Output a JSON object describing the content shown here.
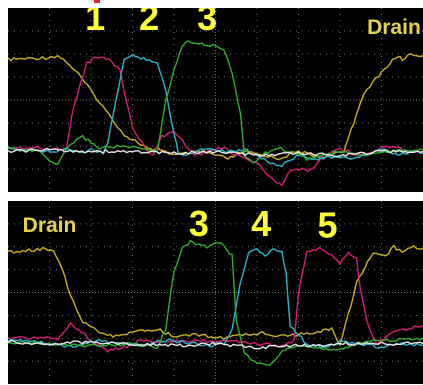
{
  "colors": {
    "background": "#000000",
    "grid": "#6f6f6f",
    "label": "#ffff33",
    "drain_label": "#e6d24a",
    "trace_yellow": "#c8b21c",
    "trace_magenta": "#d81b78",
    "trace_cyan": "#2ab4cc",
    "trace_green": "#2fae2f",
    "trace_white": "#e6e6e6"
  },
  "chart_data": [
    {
      "type": "line",
      "grid": true,
      "xlim": [
        0,
        100
      ],
      "ylim": [
        0,
        1
      ],
      "annotations": [
        {
          "text": "1",
          "x": 21,
          "y": 0.88,
          "kind": "number"
        },
        {
          "text": "2",
          "x": 34,
          "y": 0.88,
          "kind": "number"
        },
        {
          "text": "3",
          "x": 48,
          "y": 0.88,
          "kind": "number"
        },
        {
          "text": "Drain",
          "x": 93,
          "y": 0.86,
          "kind": "drain"
        }
      ],
      "series": [
        {
          "color": "#c8b21c",
          "x": [
            0,
            9,
            12,
            14,
            17,
            25,
            28,
            32,
            35,
            36,
            40,
            47,
            50,
            53,
            57,
            61,
            62,
            65,
            70,
            75,
            78,
            81,
            82,
            84,
            85,
            88,
            90,
            92,
            94,
            95,
            97,
            100
          ],
          "y": [
            0.72,
            0.73,
            0.74,
            0.71,
            0.64,
            0.4,
            0.31,
            0.26,
            0.22,
            0.24,
            0.2,
            0.22,
            0.2,
            0.18,
            0.22,
            0.2,
            0.2,
            0.18,
            0.22,
            0.19,
            0.2,
            0.22,
            0.3,
            0.42,
            0.5,
            0.6,
            0.65,
            0.7,
            0.74,
            0.72,
            0.75,
            0.74
          ]
        },
        {
          "color": "#d81b78",
          "x": [
            0,
            7,
            10,
            14,
            16,
            19,
            21,
            23,
            25,
            27,
            28,
            30,
            33,
            35,
            37,
            40,
            42,
            45,
            48,
            52,
            55,
            60,
            63,
            66,
            68,
            73,
            76,
            80,
            84,
            88,
            92,
            96,
            100
          ],
          "y": [
            0.24,
            0.24,
            0.23,
            0.24,
            0.48,
            0.7,
            0.73,
            0.73,
            0.71,
            0.66,
            0.55,
            0.35,
            0.24,
            0.2,
            0.3,
            0.33,
            0.28,
            0.2,
            0.22,
            0.24,
            0.2,
            0.16,
            0.08,
            0.04,
            0.12,
            0.12,
            0.2,
            0.24,
            0.2,
            0.22,
            0.25,
            0.22,
            0.22
          ]
        },
        {
          "color": "#2ab4cc",
          "x": [
            0,
            5,
            11,
            14,
            17,
            20,
            23,
            24,
            26,
            28,
            30,
            32,
            34,
            36,
            38,
            40,
            41,
            43,
            45,
            48,
            53,
            57,
            61,
            64,
            66,
            68,
            71,
            74,
            78,
            82,
            86,
            90,
            94,
            98,
            100
          ],
          "y": [
            0.23,
            0.23,
            0.22,
            0.24,
            0.21,
            0.23,
            0.21,
            0.26,
            0.5,
            0.72,
            0.74,
            0.73,
            0.72,
            0.7,
            0.55,
            0.32,
            0.22,
            0.2,
            0.22,
            0.24,
            0.22,
            0.23,
            0.19,
            0.15,
            0.14,
            0.18,
            0.2,
            0.18,
            0.19,
            0.18,
            0.2,
            0.23,
            0.2,
            0.22,
            0.21
          ]
        },
        {
          "color": "#2fae2f",
          "x": [
            0,
            8,
            10,
            12,
            15,
            18,
            22,
            27,
            33,
            36,
            38,
            40,
            42,
            44,
            46,
            48,
            50,
            52,
            54,
            56,
            57,
            59,
            62,
            65,
            68,
            72,
            76,
            80,
            85,
            90,
            95,
            100
          ],
          "y": [
            0.24,
            0.22,
            0.16,
            0.15,
            0.26,
            0.3,
            0.24,
            0.25,
            0.23,
            0.22,
            0.5,
            0.66,
            0.8,
            0.82,
            0.81,
            0.8,
            0.79,
            0.78,
            0.65,
            0.42,
            0.2,
            0.16,
            0.21,
            0.24,
            0.22,
            0.18,
            0.2,
            0.22,
            0.2,
            0.22,
            0.23,
            0.23
          ]
        },
        {
          "color": "#e6e6e6",
          "x": [
            0,
            10,
            20,
            30,
            40,
            50,
            60,
            70,
            80,
            90,
            100
          ],
          "y": [
            0.22,
            0.23,
            0.22,
            0.22,
            0.21,
            0.22,
            0.2,
            0.21,
            0.2,
            0.22,
            0.22
          ]
        }
      ]
    },
    {
      "type": "line",
      "grid": true,
      "xlim": [
        0,
        100
      ],
      "ylim": [
        0,
        1
      ],
      "annotations": [
        {
          "text": "Drain",
          "x": 10,
          "y": 0.83,
          "kind": "drain"
        },
        {
          "text": "3",
          "x": 46,
          "y": 0.81,
          "kind": "number"
        },
        {
          "text": "4",
          "x": 61,
          "y": 0.81,
          "kind": "number"
        },
        {
          "text": "5",
          "x": 77,
          "y": 0.8,
          "kind": "number"
        }
      ],
      "series": [
        {
          "color": "#c8b21c",
          "x": [
            0,
            5,
            9,
            11,
            13,
            15,
            18,
            22,
            26,
            30,
            36,
            40,
            46,
            52,
            58,
            62,
            66,
            70,
            74,
            78,
            80,
            82,
            84,
            86,
            88,
            91,
            93,
            95,
            97,
            100
          ],
          "y": [
            0.72,
            0.73,
            0.74,
            0.73,
            0.64,
            0.48,
            0.34,
            0.28,
            0.26,
            0.28,
            0.3,
            0.26,
            0.27,
            0.25,
            0.27,
            0.28,
            0.26,
            0.27,
            0.28,
            0.3,
            0.22,
            0.38,
            0.55,
            0.64,
            0.72,
            0.7,
            0.75,
            0.72,
            0.75,
            0.74
          ]
        },
        {
          "color": "#d81b78",
          "x": [
            0,
            12,
            15,
            17,
            20,
            24,
            28,
            32,
            40,
            45,
            50,
            55,
            60,
            66,
            69,
            70,
            72,
            75,
            78,
            80,
            82,
            84,
            85,
            87,
            89,
            92,
            96,
            100
          ],
          "y": [
            0.25,
            0.25,
            0.33,
            0.3,
            0.24,
            0.18,
            0.2,
            0.24,
            0.23,
            0.24,
            0.23,
            0.23,
            0.22,
            0.21,
            0.24,
            0.5,
            0.72,
            0.74,
            0.71,
            0.66,
            0.72,
            0.68,
            0.5,
            0.3,
            0.22,
            0.28,
            0.3,
            0.32
          ]
        },
        {
          "color": "#2ab4cc",
          "x": [
            0,
            8,
            15,
            22,
            28,
            34,
            38,
            42,
            48,
            52,
            54,
            56,
            58,
            60,
            62,
            64,
            66,
            67,
            68,
            72,
            76,
            80,
            85,
            90,
            95,
            100
          ],
          "y": [
            0.24,
            0.23,
            0.2,
            0.24,
            0.22,
            0.22,
            0.24,
            0.23,
            0.21,
            0.22,
            0.3,
            0.55,
            0.72,
            0.74,
            0.7,
            0.74,
            0.72,
            0.6,
            0.32,
            0.22,
            0.2,
            0.23,
            0.22,
            0.2,
            0.22,
            0.21
          ]
        },
        {
          "color": "#2fae2f",
          "x": [
            0,
            10,
            20,
            30,
            36,
            38,
            40,
            42,
            44,
            46,
            48,
            50,
            52,
            54,
            55,
            57,
            60,
            63,
            66,
            70,
            74,
            78,
            82,
            86,
            90,
            95,
            100
          ],
          "y": [
            0.23,
            0.22,
            0.21,
            0.22,
            0.2,
            0.3,
            0.62,
            0.74,
            0.78,
            0.76,
            0.75,
            0.78,
            0.76,
            0.7,
            0.35,
            0.16,
            0.12,
            0.1,
            0.18,
            0.2,
            0.2,
            0.19,
            0.2,
            0.23,
            0.24,
            0.24,
            0.25
          ]
        },
        {
          "color": "#e6e6e6",
          "x": [
            0,
            10,
            20,
            30,
            40,
            50,
            60,
            70,
            80,
            90,
            100
          ],
          "y": [
            0.23,
            0.22,
            0.23,
            0.22,
            0.21,
            0.22,
            0.2,
            0.21,
            0.22,
            0.22,
            0.22
          ]
        }
      ]
    }
  ]
}
